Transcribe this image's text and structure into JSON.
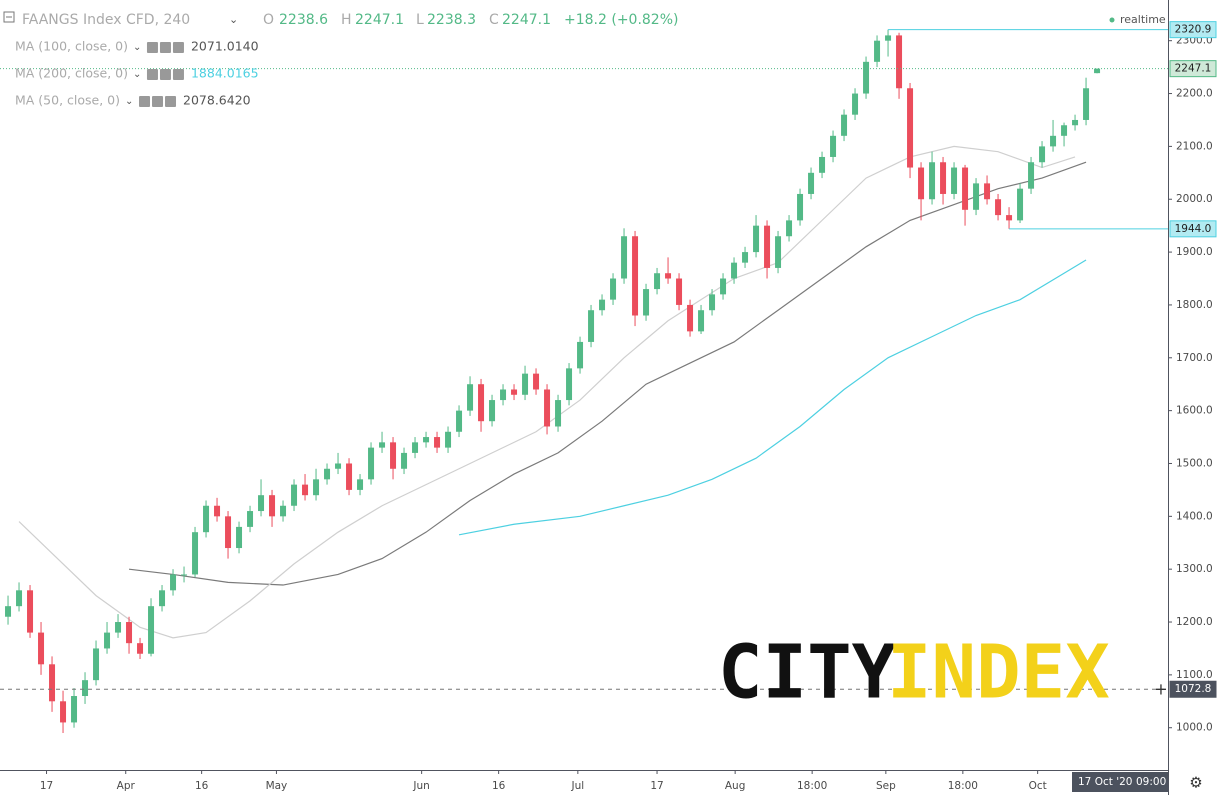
{
  "chart_data": {
    "type": "candlestick",
    "title": "FAANGS Index CFD, 240",
    "header": {
      "o_label": "O",
      "o": 2238.6,
      "h_label": "H",
      "h": 2247.1,
      "l_label": "L",
      "l": 2238.3,
      "c_label": "C",
      "c": 2247.1,
      "change": "+18.2 (+0.82%)",
      "status": "realtime"
    },
    "up_color": "#53b987",
    "down_color": "#eb4d5c",
    "ylim": [
      920,
      2377
    ],
    "yticks": [
      {
        "value": 1000,
        "label": "1000.0"
      },
      {
        "value": 1100,
        "label": "1100.0"
      },
      {
        "value": 1200,
        "label": "1200.0"
      },
      {
        "value": 1300,
        "label": "1300.0"
      },
      {
        "value": 1400,
        "label": "1400.0"
      },
      {
        "value": 1500,
        "label": "1500.0"
      },
      {
        "value": 1600,
        "label": "1600.0"
      },
      {
        "value": 1700,
        "label": "1700.0"
      },
      {
        "value": 1800,
        "label": "1800.0"
      },
      {
        "value": 1900,
        "label": "1900.0"
      },
      {
        "value": 2000,
        "label": "2000.0"
      },
      {
        "value": 2100,
        "label": "2100.0"
      },
      {
        "value": 2200,
        "label": "2200.0"
      },
      {
        "value": 2300,
        "label": "2300.0"
      }
    ],
    "xlim": [
      -0.73,
      105.45
    ],
    "xticks": [
      {
        "value": 3.5,
        "label": "17"
      },
      {
        "value": 10.7,
        "label": "Apr"
      },
      {
        "value": 17.6,
        "label": "16"
      },
      {
        "value": 24.4,
        "label": "May"
      },
      {
        "value": 37.6,
        "label": "Jun"
      },
      {
        "value": 44.6,
        "label": "16"
      },
      {
        "value": 51.8,
        "label": "Jul"
      },
      {
        "value": 59,
        "label": "17"
      },
      {
        "value": 66.1,
        "label": "Aug"
      },
      {
        "value": 73.1,
        "label": "18:00"
      },
      {
        "value": 79.8,
        "label": "Sep"
      },
      {
        "value": 86.8,
        "label": "18:00"
      },
      {
        "value": 93.6,
        "label": "Oct"
      }
    ],
    "ohlc": [
      [
        1210,
        1250,
        1195,
        1230
      ],
      [
        1230,
        1275,
        1220,
        1260
      ],
      [
        1260,
        1270,
        1170,
        1180
      ],
      [
        1180,
        1200,
        1100,
        1120
      ],
      [
        1120,
        1135,
        1030,
        1050
      ],
      [
        1050,
        1070,
        990,
        1010
      ],
      [
        1010,
        1075,
        1000,
        1060
      ],
      [
        1060,
        1105,
        1045,
        1090
      ],
      [
        1090,
        1165,
        1080,
        1150
      ],
      [
        1150,
        1200,
        1140,
        1180
      ],
      [
        1180,
        1215,
        1170,
        1200
      ],
      [
        1200,
        1210,
        1140,
        1160
      ],
      [
        1160,
        1170,
        1130,
        1140
      ],
      [
        1140,
        1245,
        1135,
        1230
      ],
      [
        1230,
        1270,
        1220,
        1260
      ],
      [
        1260,
        1300,
        1250,
        1290
      ],
      [
        1290,
        1305,
        1275,
        1290
      ],
      [
        1290,
        1380,
        1285,
        1370
      ],
      [
        1370,
        1430,
        1360,
        1420
      ],
      [
        1420,
        1435,
        1390,
        1400
      ],
      [
        1400,
        1410,
        1320,
        1340
      ],
      [
        1340,
        1390,
        1330,
        1380
      ],
      [
        1380,
        1420,
        1370,
        1410
      ],
      [
        1410,
        1470,
        1400,
        1440
      ],
      [
        1440,
        1450,
        1380,
        1400
      ],
      [
        1400,
        1430,
        1390,
        1420
      ],
      [
        1420,
        1470,
        1410,
        1460
      ],
      [
        1460,
        1480,
        1430,
        1440
      ],
      [
        1440,
        1490,
        1430,
        1470
      ],
      [
        1470,
        1500,
        1460,
        1490
      ],
      [
        1490,
        1520,
        1480,
        1500
      ],
      [
        1500,
        1510,
        1440,
        1450
      ],
      [
        1450,
        1480,
        1440,
        1470
      ],
      [
        1470,
        1540,
        1460,
        1530
      ],
      [
        1530,
        1560,
        1520,
        1540
      ],
      [
        1540,
        1550,
        1470,
        1490
      ],
      [
        1490,
        1530,
        1480,
        1520
      ],
      [
        1520,
        1550,
        1510,
        1540
      ],
      [
        1540,
        1560,
        1530,
        1550
      ],
      [
        1550,
        1560,
        1520,
        1530
      ],
      [
        1530,
        1570,
        1520,
        1560
      ],
      [
        1560,
        1610,
        1550,
        1600
      ],
      [
        1600,
        1665,
        1590,
        1650
      ],
      [
        1650,
        1660,
        1560,
        1580
      ],
      [
        1580,
        1630,
        1570,
        1620
      ],
      [
        1620,
        1650,
        1610,
        1640
      ],
      [
        1640,
        1650,
        1620,
        1630
      ],
      [
        1630,
        1685,
        1620,
        1670
      ],
      [
        1670,
        1680,
        1630,
        1640
      ],
      [
        1640,
        1650,
        1555,
        1570
      ],
      [
        1570,
        1630,
        1560,
        1620
      ],
      [
        1620,
        1690,
        1610,
        1680
      ],
      [
        1680,
        1740,
        1670,
        1730
      ],
      [
        1730,
        1800,
        1720,
        1790
      ],
      [
        1790,
        1820,
        1780,
        1810
      ],
      [
        1810,
        1860,
        1800,
        1850
      ],
      [
        1850,
        1945,
        1840,
        1930
      ],
      [
        1930,
        1940,
        1760,
        1780
      ],
      [
        1780,
        1840,
        1770,
        1830
      ],
      [
        1830,
        1870,
        1820,
        1860
      ],
      [
        1860,
        1890,
        1840,
        1850
      ],
      [
        1850,
        1860,
        1790,
        1800
      ],
      [
        1800,
        1810,
        1740,
        1750
      ],
      [
        1750,
        1800,
        1745,
        1790
      ],
      [
        1790,
        1830,
        1780,
        1820
      ],
      [
        1820,
        1860,
        1810,
        1850
      ],
      [
        1850,
        1890,
        1840,
        1880
      ],
      [
        1880,
        1910,
        1870,
        1900
      ],
      [
        1900,
        1970,
        1890,
        1950
      ],
      [
        1950,
        1960,
        1850,
        1870
      ],
      [
        1870,
        1940,
        1860,
        1930
      ],
      [
        1930,
        1970,
        1920,
        1960
      ],
      [
        1960,
        2020,
        1950,
        2010
      ],
      [
        2010,
        2060,
        2000,
        2050
      ],
      [
        2050,
        2090,
        2040,
        2080
      ],
      [
        2080,
        2130,
        2070,
        2120
      ],
      [
        2120,
        2170,
        2110,
        2160
      ],
      [
        2160,
        2210,
        2150,
        2200
      ],
      [
        2200,
        2270,
        2190,
        2260
      ],
      [
        2260,
        2310,
        2250,
        2300
      ],
      [
        2300,
        2320.9,
        2270,
        2310
      ],
      [
        2310,
        2315,
        2190,
        2210
      ],
      [
        2210,
        2220,
        2040,
        2060
      ],
      [
        2060,
        2070,
        1960,
        2000
      ],
      [
        2000,
        2090,
        1990,
        2070
      ],
      [
        2070,
        2080,
        1990,
        2010
      ],
      [
        2010,
        2070,
        2000,
        2060
      ],
      [
        2060,
        2065,
        1950,
        1980
      ],
      [
        1980,
        2040,
        1970,
        2030
      ],
      [
        2030,
        2045,
        1990,
        2000
      ],
      [
        2000,
        2010,
        1960,
        1970
      ],
      [
        1970,
        1985,
        1944.0,
        1960
      ],
      [
        1960,
        2030,
        1955,
        2020
      ],
      [
        2020,
        2080,
        2010,
        2070
      ],
      [
        2070,
        2110,
        2060,
        2100
      ],
      [
        2100,
        2150,
        2090,
        2120
      ],
      [
        2120,
        2145,
        2100,
        2140
      ],
      [
        2140,
        2160,
        2130,
        2150
      ],
      [
        2150,
        2230,
        2140,
        2210
      ],
      [
        2238.6,
        2247.1,
        2238.3,
        2247.1
      ]
    ],
    "series": [
      {
        "name": "MA (100, close, 0)",
        "value_label": "2071.0140",
        "color": "#7a7a7a",
        "x": [
          11,
          15,
          20,
          25,
          30,
          34,
          38,
          42,
          46,
          50,
          54,
          58,
          62,
          66,
          70,
          74,
          78,
          82,
          86,
          90,
          94,
          98
        ],
        "values": [
          1300,
          1290,
          1275,
          1270,
          1290,
          1320,
          1370,
          1430,
          1480,
          1520,
          1580,
          1650,
          1690,
          1730,
          1790,
          1850,
          1910,
          1960,
          1990,
          2020,
          2040,
          2070
        ]
      },
      {
        "name": "MA (200, close, 0)",
        "value_label": "1884.0165",
        "color": "#4dd0e1",
        "x": [
          41,
          46,
          52,
          56,
          60,
          64,
          68,
          72,
          76,
          80,
          84,
          88,
          92,
          96,
          98
        ],
        "values": [
          1365,
          1385,
          1400,
          1420,
          1440,
          1470,
          1510,
          1570,
          1640,
          1700,
          1740,
          1780,
          1810,
          1860,
          1885
        ]
      },
      {
        "name": "MA (50, close, 0)",
        "value_label": "2078.6420",
        "color": "#cfcfcf",
        "x": [
          1,
          4,
          8,
          12,
          15,
          18,
          22,
          26,
          30,
          34,
          38,
          42,
          48,
          52,
          56,
          60,
          66,
          70,
          74,
          78,
          82,
          86,
          90,
          94,
          97
        ],
        "values": [
          1390,
          1330,
          1250,
          1190,
          1170,
          1180,
          1240,
          1310,
          1370,
          1420,
          1460,
          1500,
          1560,
          1620,
          1700,
          1770,
          1850,
          1880,
          1960,
          2040,
          2080,
          2100,
          2090,
          2060,
          2080
        ]
      }
    ],
    "price_markers": [
      {
        "value": 2320.9,
        "label": "2320.9",
        "from": 80
      },
      {
        "value": 1944.0,
        "label": "1944.0",
        "from": 91
      }
    ],
    "last_price": {
      "value": 2247.1,
      "label": "2247.1"
    },
    "crosshair": {
      "value": 1072.8,
      "label": "1072.8",
      "date": "17 Oct '20",
      "time": "09:00"
    },
    "logo": {
      "left": "CITY",
      "right": "INDEX"
    }
  }
}
